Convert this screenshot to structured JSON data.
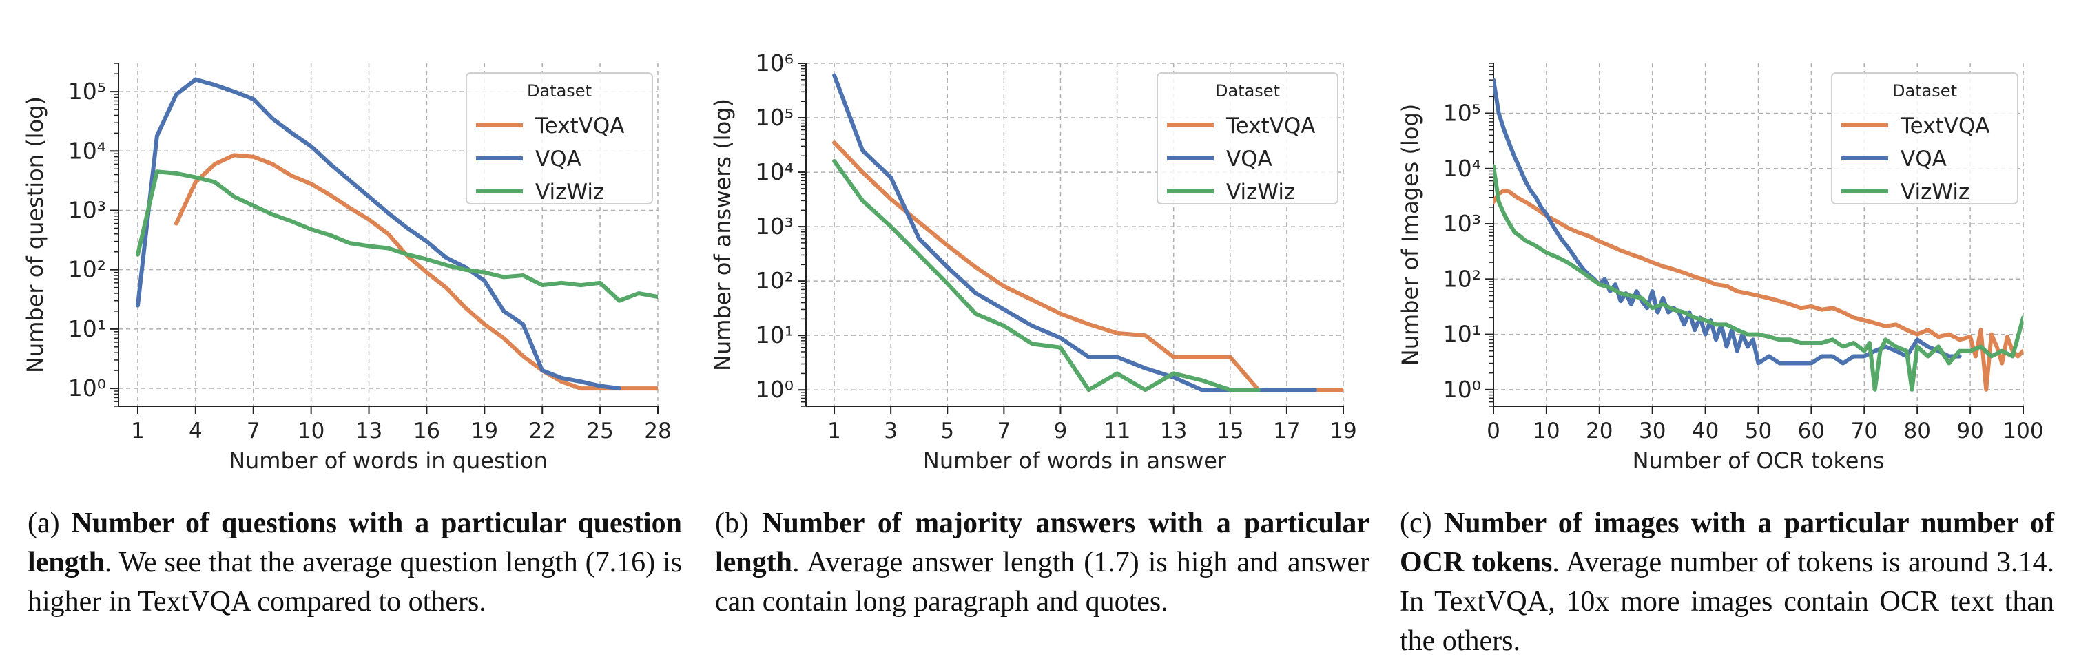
{
  "colors": {
    "TextVQA": "#dd8452",
    "VQA": "#4c72b0",
    "VizWiz": "#55a868"
  },
  "chart_data": [
    {
      "type": "line",
      "xlabel": "Number of words in question",
      "ylabel": "Number of question (log)",
      "yscale": "log",
      "xlim": [
        0,
        28
      ],
      "ylim": [
        0.5,
        300000
      ],
      "xticks": [
        1,
        4,
        7,
        10,
        13,
        16,
        19,
        22,
        25,
        28
      ],
      "yticks": [
        1,
        10,
        100,
        1000,
        10000,
        100000
      ],
      "legend": {
        "title": "Dataset",
        "position": "top-right"
      },
      "grid": true,
      "series": [
        {
          "name": "TextVQA",
          "x": [
            3,
            4,
            5,
            6,
            7,
            8,
            9,
            10,
            11,
            12,
            13,
            14,
            15,
            16,
            17,
            18,
            19,
            20,
            21,
            22,
            23,
            24,
            25,
            26,
            27,
            28
          ],
          "y": [
            600,
            3000,
            6000,
            8500,
            8000,
            6000,
            3800,
            2800,
            1800,
            1100,
            700,
            400,
            170,
            90,
            50,
            23,
            12,
            7,
            3.5,
            2,
            1.3,
            1,
            1,
            1,
            1,
            1
          ]
        },
        {
          "name": "VQA",
          "x": [
            1,
            2,
            3,
            4,
            5,
            6,
            7,
            8,
            9,
            10,
            11,
            12,
            13,
            14,
            15,
            16,
            17,
            18,
            19,
            20,
            21,
            22,
            23,
            24,
            25,
            26
          ],
          "y": [
            25,
            18000,
            90000,
            160000,
            130000,
            100000,
            75000,
            35000,
            20000,
            12000,
            6000,
            3200,
            1700,
            900,
            500,
            300,
            160,
            110,
            65,
            20,
            12,
            2,
            1.5,
            1.3,
            1.1,
            1
          ]
        },
        {
          "name": "VizWiz",
          "x": [
            1,
            2,
            3,
            4,
            5,
            6,
            7,
            8,
            9,
            10,
            11,
            12,
            13,
            14,
            15,
            16,
            17,
            18,
            19,
            20,
            21,
            22,
            23,
            24,
            25,
            26,
            27,
            28
          ],
          "y": [
            180,
            4500,
            4200,
            3600,
            3000,
            1700,
            1200,
            850,
            650,
            480,
            380,
            280,
            250,
            230,
            180,
            150,
            120,
            100,
            90,
            75,
            80,
            55,
            60,
            55,
            60,
            30,
            40,
            35
          ]
        }
      ]
    },
    {
      "type": "line",
      "xlabel": "Number of words in answer",
      "ylabel": "Number of answers (log)",
      "yscale": "log",
      "xlim": [
        0,
        19
      ],
      "ylim": [
        0.5,
        1000000
      ],
      "xticks": [
        1,
        3,
        5,
        7,
        9,
        11,
        13,
        15,
        17,
        19
      ],
      "yticks": [
        1,
        10,
        100,
        1000,
        10000,
        100000,
        1000000
      ],
      "legend": {
        "title": "Dataset",
        "position": "top-right"
      },
      "grid": true,
      "series": [
        {
          "name": "TextVQA",
          "x": [
            1,
            2,
            3,
            4,
            5,
            6,
            7,
            8,
            9,
            10,
            11,
            12,
            13,
            14,
            15,
            16,
            17,
            18,
            19
          ],
          "y": [
            35000,
            10000,
            3200,
            1200,
            450,
            180,
            80,
            45,
            25,
            16,
            11,
            10,
            4,
            4,
            4,
            1,
            1,
            1,
            1
          ]
        },
        {
          "name": "VQA",
          "x": [
            1,
            2,
            3,
            4,
            5,
            6,
            7,
            8,
            9,
            10,
            11,
            12,
            13,
            14,
            15,
            16,
            17,
            18
          ],
          "y": [
            600000,
            25000,
            8000,
            600,
            180,
            60,
            30,
            15,
            9,
            4,
            4,
            2.5,
            1.7,
            1,
            1,
            1,
            1,
            1
          ]
        },
        {
          "name": "VizWiz",
          "x": [
            1,
            2,
            3,
            4,
            5,
            6,
            7,
            8,
            9,
            10,
            11,
            12,
            13,
            14,
            15,
            16
          ],
          "y": [
            16000,
            3000,
            1000,
            300,
            90,
            25,
            15,
            7,
            6,
            1,
            2,
            1,
            2,
            1.5,
            1,
            1
          ]
        }
      ]
    },
    {
      "type": "line",
      "xlabel": "Number of OCR tokens",
      "ylabel": "Number of Images (log)",
      "yscale": "log",
      "xlim": [
        0,
        100
      ],
      "ylim": [
        0.5,
        800000
      ],
      "xticks": [
        0,
        10,
        20,
        30,
        40,
        50,
        60,
        70,
        80,
        90,
        100
      ],
      "yticks": [
        1,
        10,
        100,
        1000,
        10000,
        100000
      ],
      "legend": {
        "title": "Dataset",
        "position": "top-right"
      },
      "grid": true,
      "series": [
        {
          "name": "TextVQA",
          "x": [
            0,
            1,
            2,
            3,
            4,
            5,
            6,
            8,
            10,
            12,
            14,
            16,
            18,
            20,
            22,
            24,
            26,
            28,
            30,
            32,
            34,
            36,
            38,
            40,
            42,
            44,
            46,
            48,
            50,
            52,
            54,
            56,
            58,
            60,
            62,
            64,
            66,
            68,
            70,
            72,
            74,
            76,
            78,
            80,
            82,
            84,
            86,
            88,
            90,
            91,
            92,
            93,
            94,
            95,
            96,
            97,
            98,
            99,
            100
          ],
          "y": [
            2500,
            3500,
            4000,
            3800,
            3200,
            2800,
            2500,
            1900,
            1400,
            1100,
            850,
            700,
            600,
            480,
            400,
            330,
            280,
            240,
            200,
            170,
            150,
            130,
            110,
            95,
            80,
            75,
            60,
            55,
            50,
            45,
            40,
            35,
            30,
            32,
            28,
            30,
            25,
            20,
            18,
            16,
            14,
            15,
            12,
            10,
            12,
            9,
            10,
            8,
            9,
            4,
            12,
            1,
            10,
            6,
            3,
            9,
            5,
            4,
            5
          ]
        },
        {
          "name": "VQA",
          "x": [
            0,
            1,
            2,
            3,
            4,
            5,
            6,
            7,
            8,
            9,
            10,
            11,
            12,
            13,
            14,
            15,
            16,
            17,
            18,
            19,
            20,
            21,
            22,
            23,
            24,
            25,
            26,
            27,
            28,
            29,
            30,
            31,
            32,
            33,
            34,
            35,
            36,
            37,
            38,
            39,
            40,
            41,
            42,
            43,
            44,
            45,
            46,
            47,
            48,
            49,
            50,
            52,
            54,
            56,
            58,
            60,
            62,
            64,
            66,
            68,
            70,
            72,
            74,
            76,
            78,
            80,
            82,
            84,
            86,
            88
          ],
          "y": [
            400000,
            100000,
            50000,
            28000,
            16000,
            10000,
            6000,
            4000,
            3000,
            2000,
            1500,
            1000,
            700,
            500,
            380,
            280,
            200,
            150,
            120,
            100,
            80,
            100,
            60,
            80,
            40,
            55,
            35,
            60,
            40,
            30,
            60,
            25,
            45,
            25,
            30,
            25,
            15,
            25,
            12,
            20,
            10,
            18,
            8,
            15,
            6,
            12,
            5,
            10,
            6,
            8,
            3,
            4,
            3,
            3,
            3,
            3,
            4,
            4,
            3,
            4,
            4,
            5,
            6,
            5,
            4,
            8,
            6,
            5,
            4,
            4
          ]
        },
        {
          "name": "VizWiz",
          "x": [
            0,
            1,
            2,
            3,
            4,
            5,
            6,
            8,
            10,
            12,
            14,
            16,
            18,
            20,
            22,
            24,
            26,
            28,
            30,
            32,
            34,
            36,
            38,
            40,
            42,
            44,
            46,
            48,
            50,
            52,
            54,
            56,
            58,
            60,
            62,
            64,
            66,
            68,
            70,
            71,
            72,
            73,
            74,
            76,
            78,
            79,
            80,
            82,
            84,
            86,
            88,
            90,
            92,
            94,
            96,
            98,
            100
          ],
          "y": [
            11000,
            2500,
            1500,
            1000,
            700,
            600,
            500,
            400,
            300,
            250,
            200,
            150,
            110,
            80,
            70,
            55,
            50,
            45,
            30,
            35,
            28,
            25,
            20,
            18,
            15,
            15,
            12,
            10,
            10,
            9,
            8,
            8,
            7,
            7,
            7,
            8,
            6,
            7,
            5,
            7,
            1,
            5,
            8,
            6,
            5,
            1,
            6,
            4,
            6,
            3,
            5,
            5,
            6,
            4,
            5,
            4,
            20
          ]
        }
      ]
    }
  ],
  "captions": {
    "a": {
      "label": "(a)",
      "bold": "Number of questions with a particular question length",
      "text": ". We see that the average question length (7.16) is higher in TextVQA compared to others."
    },
    "b": {
      "label": "(b)",
      "bold": "Number of majority answers with a particular length",
      "text": ". Average answer length (1.7) is high and answer can contain long paragraph and quotes."
    },
    "c": {
      "label": "(c)",
      "bold": "Number of images with a particular number of OCR tokens",
      "text": ". Average number of tokens is around 3.14. In TextVQA, 10x more images contain OCR text than the others."
    }
  }
}
